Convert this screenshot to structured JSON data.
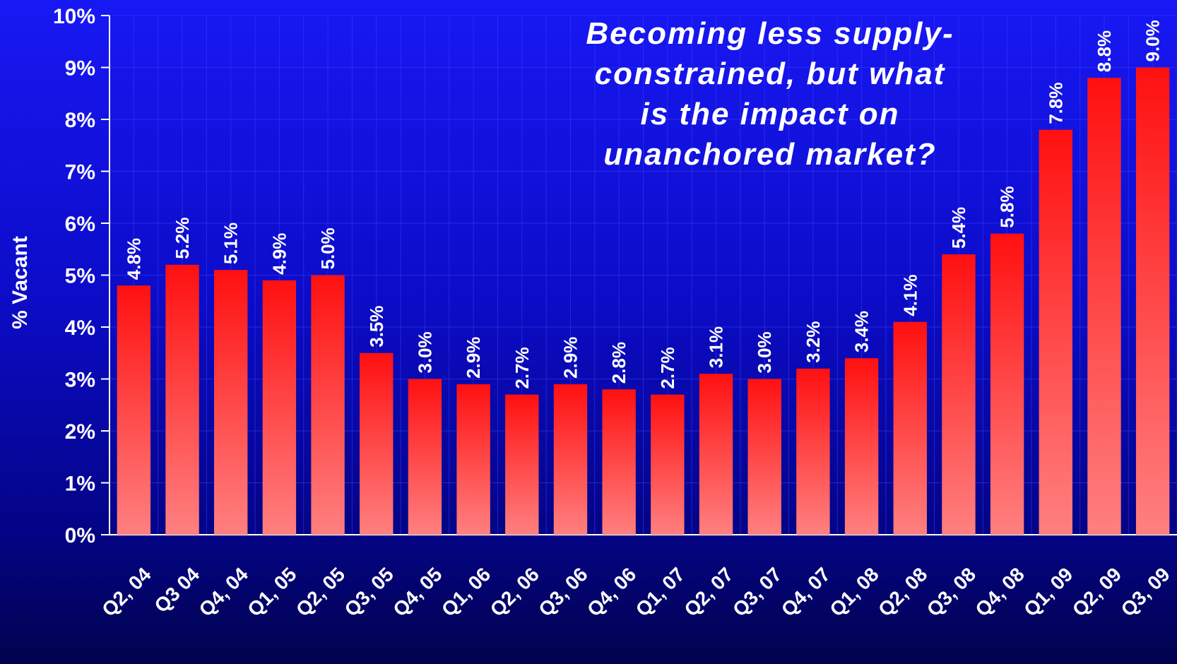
{
  "chart_data": {
    "type": "bar",
    "categories": [
      "Q2, 04",
      "Q3 04",
      "Q4, 04",
      "Q1, 05",
      "Q2, 05",
      "Q3, 05",
      "Q4, 05",
      "Q1, 06",
      "Q2, 06",
      "Q3, 06",
      "Q4, 06",
      "Q1, 07",
      "Q2, 07",
      "Q3, 07",
      "Q4, 07",
      "Q1, 08",
      "Q2, 08",
      "Q3, 08",
      "Q4, 08",
      "Q1, 09",
      "Q2, 09",
      "Q3, 09"
    ],
    "values": [
      4.8,
      5.2,
      5.1,
      4.9,
      5.0,
      3.5,
      3.0,
      2.9,
      2.7,
      2.9,
      2.8,
      2.7,
      3.1,
      3.0,
      3.2,
      3.4,
      4.1,
      5.4,
      5.8,
      7.8,
      8.8,
      9.0
    ],
    "data_labels": [
      "4.8%",
      "5.2%",
      "5.1%",
      "4.9%",
      "5.0%",
      "3.5%",
      "3.0%",
      "2.9%",
      "2.7%",
      "2.9%",
      "2.8%",
      "2.7%",
      "3.1%",
      "3.0%",
      "3.2%",
      "3.4%",
      "4.1%",
      "5.4%",
      "5.8%",
      "7.8%",
      "8.8%",
      "9.0%"
    ],
    "ylabel": "% Vacant",
    "xlabel": "",
    "ylim": [
      0,
      10
    ],
    "yticks": [
      0,
      1,
      2,
      3,
      4,
      5,
      6,
      7,
      8,
      9,
      10
    ],
    "ytick_labels": [
      "0%",
      "1%",
      "2%",
      "3%",
      "4%",
      "5%",
      "6%",
      "7%",
      "8%",
      "9%",
      "10%"
    ],
    "annotation": [
      "Becoming less supply-",
      "constrained, but what",
      "is the impact on",
      "unanchored market?"
    ],
    "grid": true,
    "legend": "none",
    "colors": {
      "bar_top": "#ff1010",
      "bar_bottom": "#ff8080",
      "text": "#ffffff",
      "grid": "#3a3aff"
    }
  }
}
